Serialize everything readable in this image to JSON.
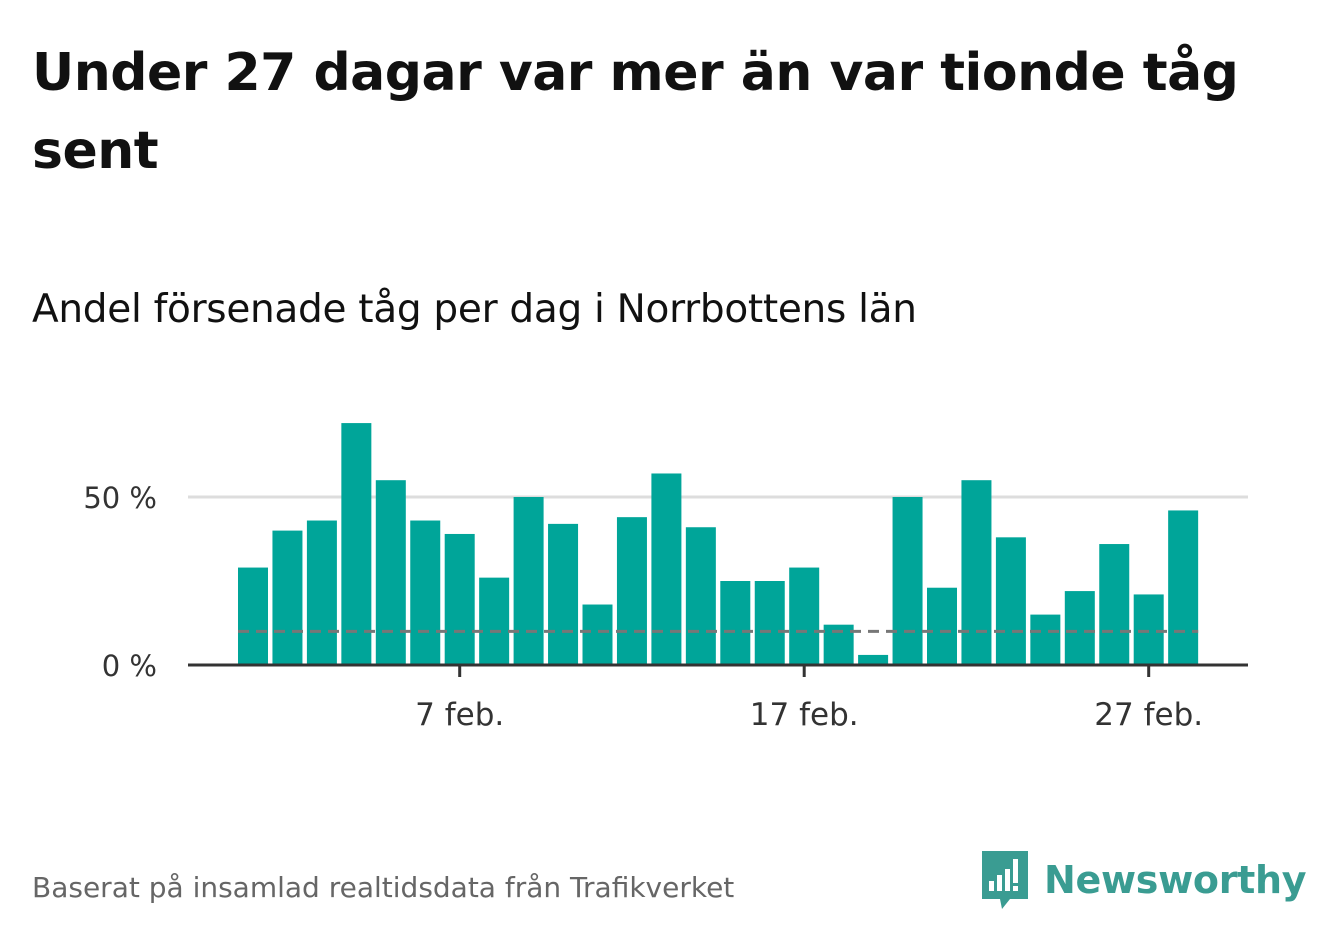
{
  "title": "Under 27 dagar var mer än var tionde tåg sent",
  "subtitle": "Andel försenade tåg per dag i Norrbottens län",
  "source": "Baserat på insamlad realtidsdata från Trafikverket",
  "logo": {
    "name": "Newsworthy",
    "icon": "bar-chart-speech-bubble-icon"
  },
  "colors": {
    "bar": "#00a599",
    "grid": "#dddddd",
    "axis": "#333333",
    "reference_line": "#777777",
    "logo": "#3a9c92"
  },
  "chart_data": {
    "type": "bar",
    "categories": [
      "1 feb.",
      "2 feb.",
      "3 feb.",
      "4 feb.",
      "5 feb.",
      "6 feb.",
      "7 feb.",
      "8 feb.",
      "9 feb.",
      "10 feb.",
      "11 feb.",
      "12 feb.",
      "13 feb.",
      "14 feb.",
      "15 feb.",
      "16 feb.",
      "17 feb.",
      "18 feb.",
      "19 feb.",
      "20 feb.",
      "21 feb.",
      "22 feb.",
      "23 feb.",
      "24 feb.",
      "25 feb.",
      "26 feb.",
      "27 feb.",
      "28 feb."
    ],
    "values": [
      29,
      40,
      43,
      72,
      55,
      43,
      39,
      26,
      50,
      42,
      18,
      44,
      57,
      41,
      25,
      25,
      29,
      12,
      3,
      50,
      23,
      55,
      38,
      15,
      22,
      36,
      21,
      46
    ],
    "reference_value": 10,
    "ylim": [
      0,
      72
    ],
    "yticks": [
      0,
      50
    ],
    "ytick_labels": [
      "0 %",
      "50 %"
    ],
    "xticks": [
      "7 feb.",
      "17 feb.",
      "27 feb."
    ],
    "grid": true,
    "legend": "none"
  }
}
